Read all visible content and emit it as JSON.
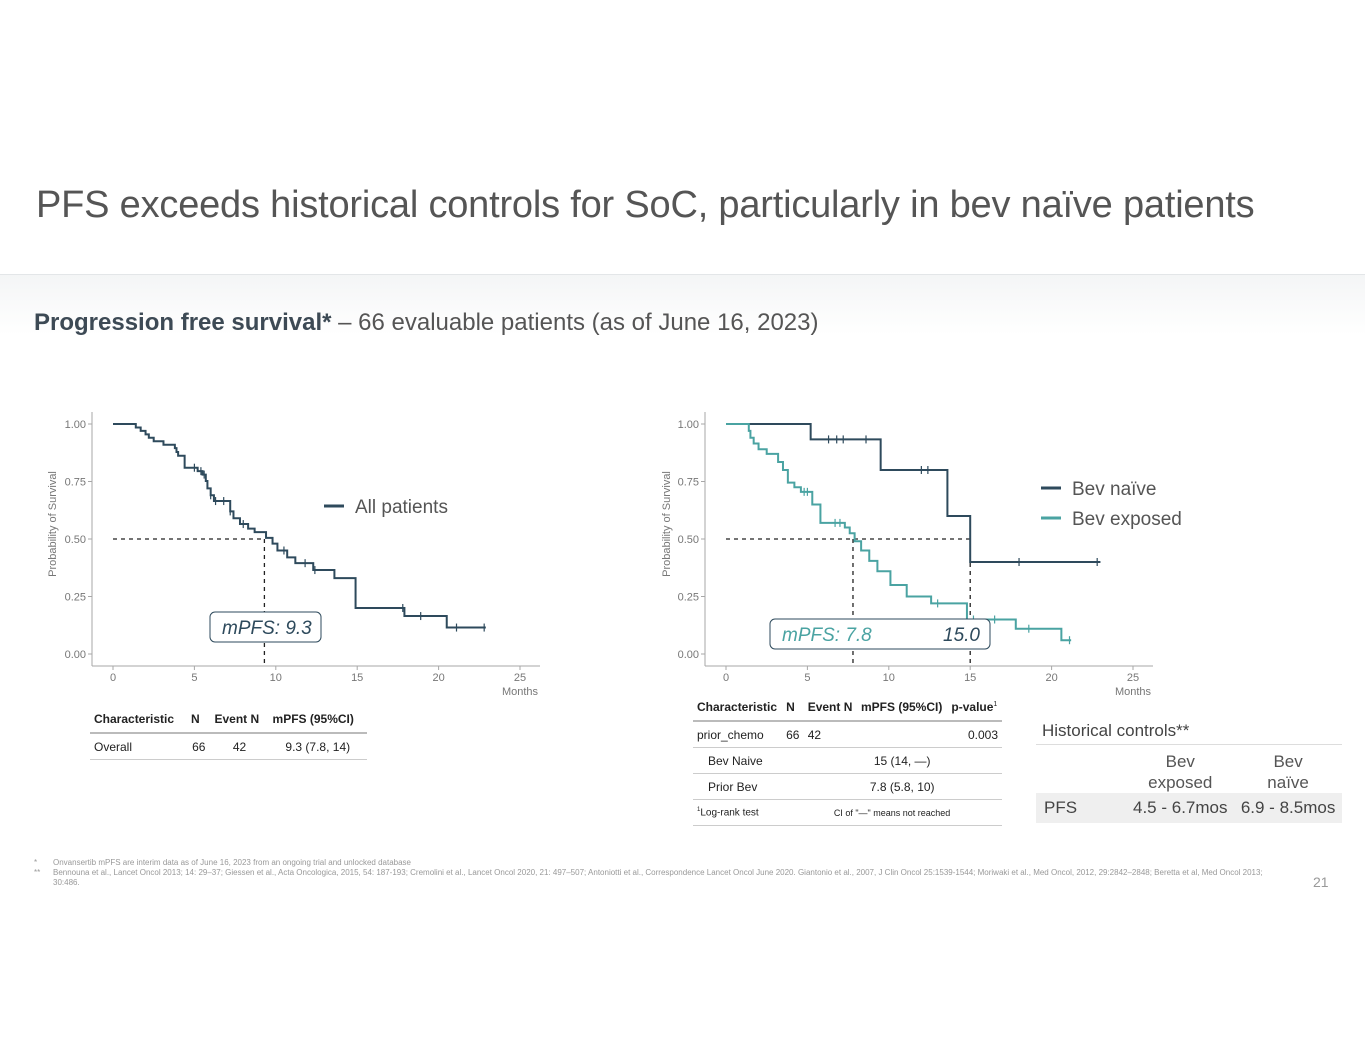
{
  "title": "PFS exceeds historical controls for SoC, particularly in bev naïve patients",
  "subtitle": {
    "bold": "Progression free survival*",
    "rest": " – 66 evaluable patients (as of June 16, 2023)"
  },
  "colors": {
    "dark": "#2e4a5c",
    "teal": "#4aa3a2"
  },
  "chart_data": [
    {
      "type": "line",
      "title": "",
      "xlabel": "Months",
      "ylabel": "Probability of Survival",
      "xlim": [
        0,
        25
      ],
      "ylim": [
        0,
        1
      ],
      "xticks": [
        "0",
        "5",
        "10",
        "15",
        "20",
        "25"
      ],
      "yticks": [
        "0.00",
        "0.25",
        "0.50",
        "0.75",
        "1.00"
      ],
      "legend": [
        "All patients"
      ],
      "annotation": "mPFS: 9.3",
      "median": 9.3,
      "series": [
        {
          "name": "All patients",
          "color": "#2e4a5c",
          "x": [
            0,
            1.4,
            1.7,
            2.0,
            2.2,
            2.5,
            3.1,
            3.8,
            3.9,
            4.0,
            4.4,
            5.2,
            5.5,
            5.7,
            5.8,
            6.0,
            6.2,
            7.2,
            7.4,
            7.8,
            8.3,
            8.7,
            9.4,
            9.8,
            10.1,
            10.7,
            11.2,
            12.3,
            13.6,
            14.9,
            17.9,
            20.5,
            22.9
          ],
          "y": [
            1.0,
            0.985,
            0.97,
            0.955,
            0.94,
            0.925,
            0.91,
            0.895,
            0.878,
            0.862,
            0.81,
            0.795,
            0.78,
            0.752,
            0.72,
            0.69,
            0.665,
            0.62,
            0.59,
            0.565,
            0.545,
            0.53,
            0.505,
            0.48,
            0.45,
            0.42,
            0.395,
            0.365,
            0.33,
            0.2,
            0.165,
            0.115,
            0.115
          ],
          "censor_x": [
            5.0,
            5.4,
            5.6,
            6.0,
            6.3,
            6.8,
            7.2,
            8.0,
            10.5,
            11.8,
            12.4,
            17.8,
            18.9,
            21.1,
            22.8
          ]
        }
      ],
      "table": {
        "headers": [
          "Characteristic",
          "N",
          "Event N",
          "mPFS (95%CI)"
        ],
        "rows": [
          [
            "Overall",
            "66",
            "42",
            "9.3 (7.8, 14)"
          ]
        ]
      }
    },
    {
      "type": "line",
      "title": "",
      "xlabel": "Months",
      "ylabel": "Probability of Survival",
      "xlim": [
        0,
        25
      ],
      "ylim": [
        0,
        1
      ],
      "xticks": [
        "0",
        "5",
        "10",
        "15",
        "20",
        "25"
      ],
      "yticks": [
        "0.00",
        "0.25",
        "0.50",
        "0.75",
        "1.00"
      ],
      "legend": [
        "Bev naïve",
        "Bev exposed"
      ],
      "annotation": "mPFS: 7.8",
      "annotation2": "15.0",
      "medians": [
        7.8,
        15.0
      ],
      "series": [
        {
          "name": "Bev naïve",
          "color": "#2e4a5c",
          "x": [
            0,
            5.2,
            9.5,
            13.6,
            15.0,
            23.0
          ],
          "y": [
            1.0,
            0.933,
            0.8,
            0.6,
            0.4,
            0.4
          ],
          "censor_x": [
            6.3,
            6.8,
            7.2,
            8.6,
            12.0,
            12.4,
            18.0,
            22.8
          ]
        },
        {
          "name": "Bev exposed",
          "color": "#4aa3a2",
          "x": [
            0,
            1.4,
            1.5,
            1.7,
            2.0,
            2.5,
            3.2,
            3.5,
            3.8,
            4.2,
            4.6,
            5.3,
            5.8,
            7.3,
            7.6,
            7.9,
            8.3,
            8.8,
            9.3,
            10.1,
            11.1,
            12.6,
            14.8,
            17.8,
            20.6,
            21.2
          ],
          "y": [
            1.0,
            0.97,
            0.94,
            0.915,
            0.89,
            0.87,
            0.835,
            0.8,
            0.745,
            0.725,
            0.705,
            0.65,
            0.57,
            0.55,
            0.525,
            0.49,
            0.45,
            0.405,
            0.36,
            0.3,
            0.25,
            0.22,
            0.15,
            0.11,
            0.06,
            0.06
          ],
          "censor_x": [
            4.8,
            5.0,
            6.7,
            7.0,
            13.0,
            15.2,
            16.5,
            18.6,
            21.1
          ]
        }
      ],
      "table": {
        "headers": [
          "Characteristic",
          "N",
          "Event N",
          "mPFS (95%CI)",
          "p-value"
        ],
        "pvalue_mark": "1",
        "rows": [
          [
            "prior_chemo",
            "66",
            "42",
            "",
            "0.003"
          ],
          [
            "Bev Naive",
            "",
            "",
            "15 (14, —)",
            ""
          ],
          [
            "Prior Bev",
            "",
            "",
            "7.8 (5.8, 10)",
            ""
          ]
        ],
        "footnote_mark": "1",
        "footnote_label": "Log-rank test",
        "footnote_note": "CI of \"—\" means not reached"
      }
    }
  ],
  "historical": {
    "title": "Historical controls**",
    "col1_l1": "Bev",
    "col1_l2": "exposed",
    "col2_l1": "Bev",
    "col2_l2": "naïve",
    "row_label": "PFS",
    "val1": "4.5 - 6.7mos",
    "val2": "6.9 - 8.5mos"
  },
  "footnotes": [
    {
      "mark": "*",
      "text": "Onvansertib mPFS are interim data as of June 16, 2023 from an ongoing trial and unlocked database"
    },
    {
      "mark": "**",
      "text": "Bennouna et al., Lancet Oncol 2013; 14: 29–37; Giessen et al., Acta Oncologica, 2015, 54: 187-193; Cremolini et al., Lancet Oncol 2020, 21: 497–507; Antoniotti et al., Correspondence Lancet Oncol June 2020. Giantonio et al., 2007, J Clin Oncol 25:1539-1544; Moriwaki et al., Med Oncol, 2012, 29:2842–2848; Beretta et al, Med Oncol 2013; 30:486."
    }
  ],
  "page_number": "21"
}
